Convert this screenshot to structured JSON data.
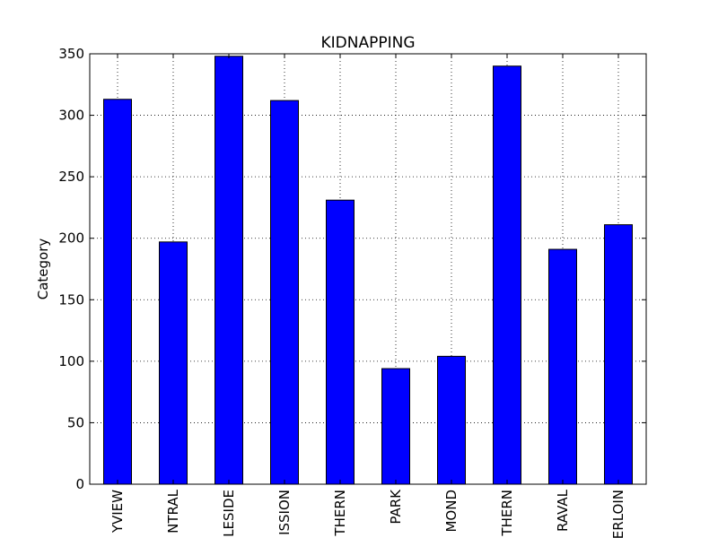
{
  "chart_data": {
    "type": "bar",
    "title": "KIDNAPPING",
    "xlabel": "",
    "ylabel": "Category",
    "categories": [
      "YVIEW",
      "NTRAL",
      "LESIDE",
      "ISSION",
      "THERN",
      "PARK",
      "MOND",
      "THERN",
      "RAVAL",
      "ERLOIN"
    ],
    "values": [
      313,
      197,
      348,
      312,
      231,
      94,
      104,
      340,
      191,
      211
    ],
    "ylim": [
      0,
      350
    ],
    "yticks": [
      0,
      50,
      100,
      150,
      200,
      250,
      300,
      350
    ],
    "grid": true,
    "bar_color": "#0000ff",
    "edge_color": "#000000"
  }
}
